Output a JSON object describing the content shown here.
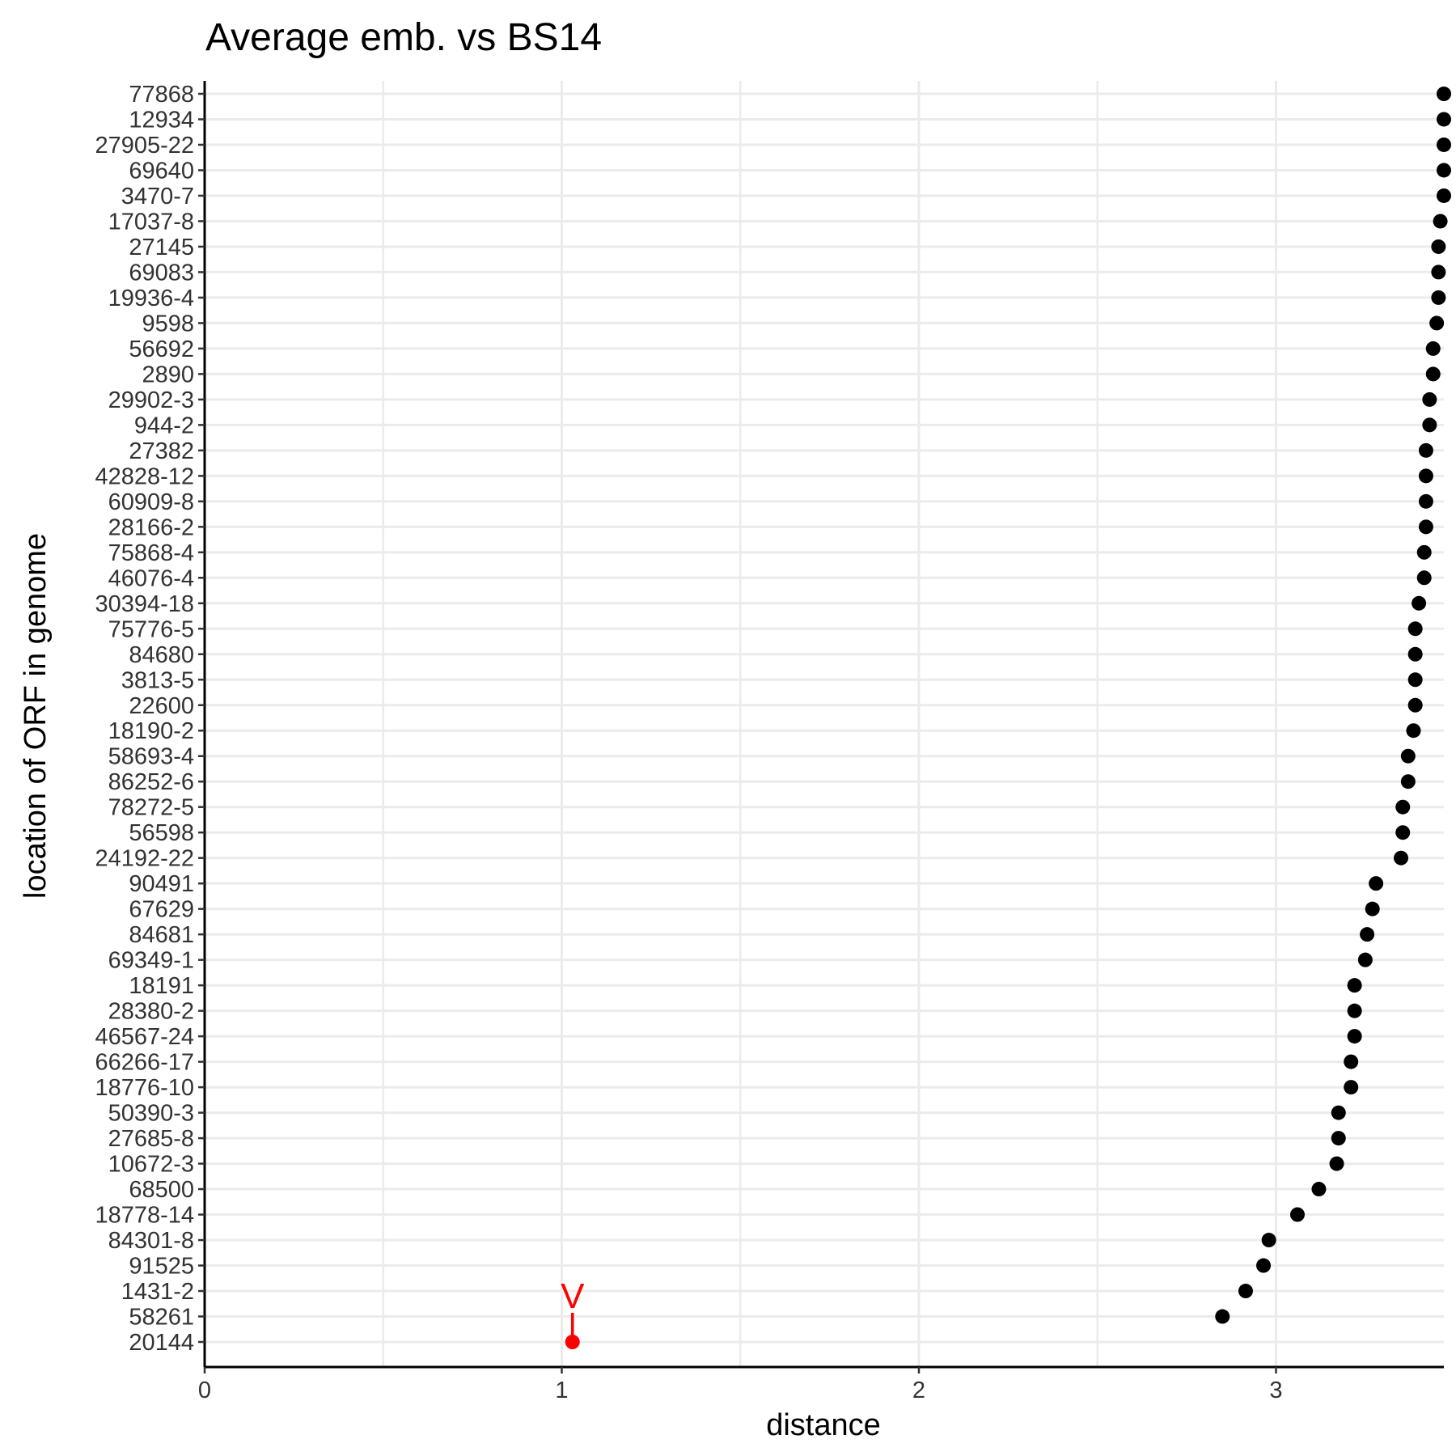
{
  "chart_data": {
    "type": "scatter",
    "title": "Average emb. vs BS14",
    "xlabel": "distance",
    "ylabel": "location of ORF in genome",
    "xlim": [
      0,
      3.47
    ],
    "xticks": [
      0,
      1,
      2,
      3
    ],
    "grid": true,
    "categories": [
      "77868",
      "12934",
      "27905-22",
      "69640",
      "3470-7",
      "17037-8",
      "27145",
      "69083",
      "19936-4",
      "9598",
      "56692",
      "2890",
      "29902-3",
      "944-2",
      "27382",
      "42828-12",
      "60909-8",
      "28166-2",
      "75868-4",
      "46076-4",
      "30394-18",
      "75776-5",
      "84680",
      "3813-5",
      "22600",
      "18190-2",
      "58693-4",
      "86252-6",
      "78272-5",
      "56598",
      "24192-22",
      "90491",
      "67629",
      "84681",
      "69349-1",
      "18191",
      "28380-2",
      "46567-24",
      "66266-17",
      "18776-10",
      "50390-3",
      "27685-8",
      "10672-3",
      "68500",
      "18778-14",
      "84301-8",
      "91525",
      "1431-2",
      "58261",
      "20144"
    ],
    "values": [
      3.47,
      3.47,
      3.47,
      3.47,
      3.47,
      3.46,
      3.455,
      3.455,
      3.455,
      3.45,
      3.44,
      3.44,
      3.43,
      3.43,
      3.42,
      3.42,
      3.42,
      3.42,
      3.415,
      3.415,
      3.4,
      3.39,
      3.39,
      3.39,
      3.39,
      3.385,
      3.37,
      3.37,
      3.355,
      3.355,
      3.35,
      3.28,
      3.27,
      3.255,
      3.25,
      3.22,
      3.22,
      3.22,
      3.21,
      3.21,
      3.175,
      3.175,
      3.17,
      3.12,
      3.06,
      2.98,
      2.965,
      2.915,
      2.85,
      1.03
    ],
    "highlight": {
      "category": "20144",
      "label": "V",
      "color": "#ff0000"
    },
    "point_color": "#000000"
  }
}
